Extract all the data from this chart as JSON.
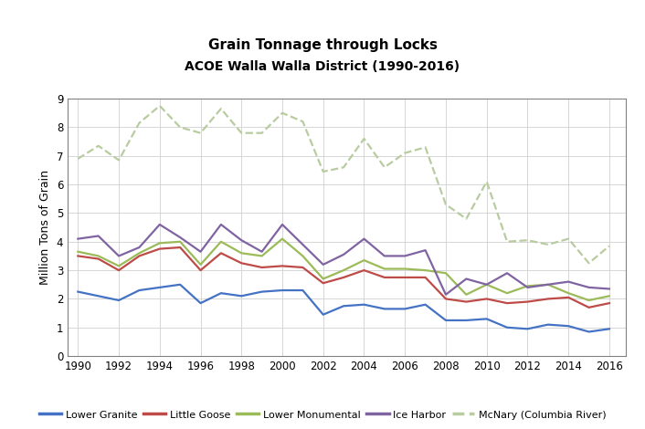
{
  "title": "Grain Tonnage through Locks",
  "subtitle": "ACOE Walla Walla District (1990-2016)",
  "ylabel": "Million Tons of Grain",
  "years": [
    1990,
    1991,
    1992,
    1993,
    1994,
    1995,
    1996,
    1997,
    1998,
    1999,
    2000,
    2001,
    2002,
    2003,
    2004,
    2005,
    2006,
    2007,
    2008,
    2009,
    2010,
    2011,
    2012,
    2013,
    2014,
    2015,
    2016
  ],
  "lower_granite": [
    2.25,
    2.1,
    1.95,
    2.3,
    2.4,
    2.5,
    1.85,
    2.2,
    2.1,
    2.25,
    2.3,
    2.3,
    1.45,
    1.75,
    1.8,
    1.65,
    1.65,
    1.8,
    1.25,
    1.25,
    1.3,
    1.0,
    0.95,
    1.1,
    1.05,
    0.85,
    0.95
  ],
  "little_goose": [
    3.5,
    3.4,
    3.0,
    3.5,
    3.75,
    3.8,
    3.0,
    3.6,
    3.25,
    3.1,
    3.15,
    3.1,
    2.55,
    2.75,
    3.0,
    2.75,
    2.75,
    2.75,
    2.0,
    1.9,
    2.0,
    1.85,
    1.9,
    2.0,
    2.05,
    1.7,
    1.85
  ],
  "lower_monumental": [
    3.65,
    3.5,
    3.15,
    3.6,
    3.95,
    4.0,
    3.2,
    4.0,
    3.6,
    3.5,
    4.1,
    3.5,
    2.7,
    3.0,
    3.35,
    3.05,
    3.05,
    3.0,
    2.9,
    2.15,
    2.5,
    2.2,
    2.45,
    2.5,
    2.2,
    1.95,
    2.1
  ],
  "ice_harbor": [
    4.1,
    4.2,
    3.5,
    3.8,
    4.6,
    4.15,
    3.65,
    4.6,
    4.05,
    3.65,
    4.6,
    3.9,
    3.2,
    3.55,
    4.1,
    3.5,
    3.5,
    3.7,
    2.15,
    2.7,
    2.5,
    2.9,
    2.4,
    2.5,
    2.6,
    2.4,
    2.35
  ],
  "mcnary": [
    6.9,
    7.35,
    6.85,
    8.15,
    8.75,
    8.0,
    7.8,
    8.65,
    7.8,
    7.8,
    8.5,
    8.2,
    6.45,
    6.6,
    7.6,
    6.6,
    7.1,
    7.3,
    5.3,
    4.8,
    6.1,
    4.0,
    4.05,
    3.9,
    4.1,
    3.25,
    3.85
  ],
  "colors": {
    "lower_granite": "#4472C4",
    "little_goose": "#BE4B48",
    "lower_monumental": "#9BBB59",
    "ice_harbor": "#8064A2",
    "mcnary": "#B8CCa0"
  },
  "ylim": [
    0,
    9
  ],
  "yticks": [
    0,
    1,
    2,
    3,
    4,
    5,
    6,
    7,
    8,
    9
  ],
  "xticks": [
    1990,
    1992,
    1994,
    1996,
    1998,
    2000,
    2002,
    2004,
    2006,
    2008,
    2010,
    2012,
    2014,
    2016
  ],
  "xlim": [
    1989.5,
    2016.8
  ],
  "legend_labels": [
    "Lower Granite",
    "Little Goose",
    "Lower Monumental",
    "Ice Harbor",
    "McNary (Columbia River)"
  ]
}
